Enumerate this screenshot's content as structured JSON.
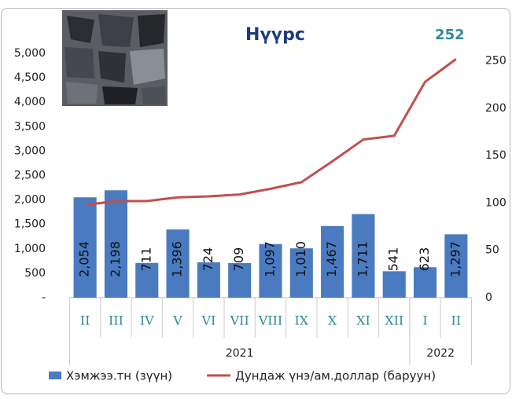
{
  "chart_data": {
    "type": "bar",
    "title": "Нүүрс",
    "categories": [
      "II",
      "III",
      "IV",
      "V",
      "VI",
      "VII",
      "VIII",
      "IX",
      "X",
      "XI",
      "XII",
      "I",
      "II"
    ],
    "groups": [
      {
        "label": "2021",
        "count": 11
      },
      {
        "label": "2022",
        "count": 2
      }
    ],
    "series": [
      {
        "name": "Хэмжээ.тн (зүүн)",
        "type": "bar",
        "color": "#4a7ac0",
        "values": [
          2054,
          2198,
          711,
          1396,
          724,
          709,
          1097,
          1010,
          1467,
          1711,
          541,
          623,
          1297
        ],
        "value_labels": [
          "2,054",
          "2,198",
          "711",
          "1,396",
          "724",
          "709",
          "1,097",
          "1,010",
          "1,467",
          "1,711",
          "541",
          "623",
          "1,297"
        ]
      },
      {
        "name": "Дундаж үнэ/ам.доллар (баруун)",
        "type": "line",
        "axis": "y2",
        "color": "#c0504d",
        "values": [
          98,
          102,
          102,
          106,
          107,
          109,
          115,
          122,
          144,
          167,
          171,
          228,
          252
        ]
      }
    ],
    "ylim": [
      0,
      5000
    ],
    "yticks": [
      {
        "value": 0,
        "label": "-"
      },
      500,
      {
        "value": 1000,
        "label": "1,000"
      },
      {
        "value": 1500,
        "label": "1,500"
      },
      {
        "value": 2000,
        "label": "2,000"
      },
      {
        "value": 2500,
        "label": "2,500"
      },
      {
        "value": 3000,
        "label": "3,000"
      },
      {
        "value": 3500,
        "label": "3,500"
      },
      {
        "value": 4000,
        "label": "4,000"
      },
      {
        "value": 4500,
        "label": "4,500"
      },
      {
        "value": 5000,
        "label": "5,000"
      }
    ],
    "y2lim": [
      0,
      258
    ],
    "y2ticks": [
      0,
      50,
      100,
      150,
      200,
      250
    ],
    "legend": "bottom"
  }
}
